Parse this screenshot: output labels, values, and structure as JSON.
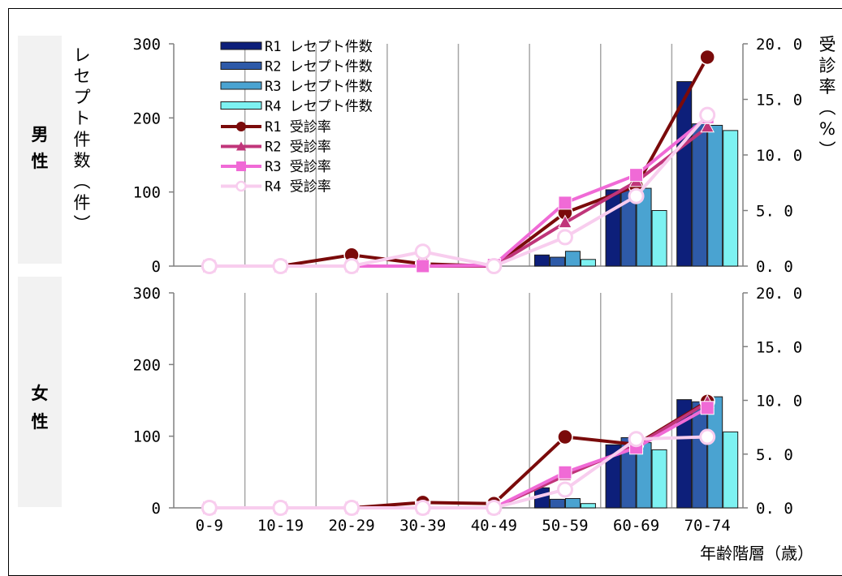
{
  "chart_data": [
    {
      "type": "bar",
      "panel_label": "男性",
      "categories": [
        "0-9",
        "10-19",
        "20-29",
        "30-39",
        "40-49",
        "50-59",
        "60-69",
        "70-74"
      ],
      "ylabel": "レセプト件数（件）",
      "y2label": "受診率（%）",
      "ylim": [
        0,
        300
      ],
      "y2lim": [
        0,
        20
      ],
      "yticks": [
        "0",
        "100",
        "200",
        "300"
      ],
      "y2ticks": [
        "0.0",
        "5.0",
        "10.0",
        "15.0",
        "20.0"
      ],
      "bar_series": [
        {
          "name": "R1 レセプト件数",
          "color": "#0d1f7a",
          "values": [
            0,
            0,
            0,
            0,
            0,
            15,
            103,
            249
          ]
        },
        {
          "name": "R2 レセプト件数",
          "color": "#2e5aa8",
          "values": [
            0,
            0,
            0,
            0,
            0,
            12,
            104,
            192
          ]
        },
        {
          "name": "R3 レセプト件数",
          "color": "#4aa3d1",
          "values": [
            0,
            0,
            0,
            0,
            0,
            20,
            105,
            190
          ]
        },
        {
          "name": "R4 レセプト件数",
          "color": "#7df2f2",
          "values": [
            0,
            0,
            0,
            0,
            0,
            9,
            75,
            183
          ]
        }
      ],
      "line_series": [
        {
          "name": "R1 受診率",
          "color": "#7a0a0a",
          "marker": "circle",
          "values": [
            0,
            0,
            1.0,
            0.2,
            0,
            4.8,
            7.2,
            18.8
          ]
        },
        {
          "name": "R2 受診率",
          "color": "#c0357a",
          "marker": "triangle",
          "values": [
            0,
            0,
            0,
            0,
            0,
            3.9,
            7.6,
            12.5
          ]
        },
        {
          "name": "R3 受診率",
          "color": "#f06ad6",
          "marker": "square",
          "values": [
            0,
            0,
            0,
            0,
            0.1,
            5.7,
            8.2,
            13.4
          ]
        },
        {
          "name": "R4 受診率",
          "color": "#f8cdee",
          "marker": "circle-open",
          "values": [
            0,
            0,
            0,
            1.3,
            0,
            2.6,
            6.3,
            13.6
          ]
        }
      ]
    },
    {
      "type": "bar",
      "panel_label": "女性",
      "categories": [
        "0-9",
        "10-19",
        "20-29",
        "30-39",
        "40-49",
        "50-59",
        "60-69",
        "70-74"
      ],
      "xlabel": "年齢階層（歳）",
      "ylim": [
        0,
        300
      ],
      "y2lim": [
        0,
        20
      ],
      "yticks": [
        "0",
        "100",
        "200",
        "300"
      ],
      "y2ticks": [
        "0.0",
        "5.0",
        "10.0",
        "15.0",
        "20.0"
      ],
      "bar_series": [
        {
          "name": "R1 レセプト件数",
          "color": "#0d1f7a",
          "values": [
            0,
            0,
            0,
            0,
            0,
            28,
            88,
            151
          ]
        },
        {
          "name": "R2 レセプト件数",
          "color": "#2e5aa8",
          "values": [
            0,
            0,
            0,
            0,
            0,
            12,
            98,
            148
          ]
        },
        {
          "name": "R3 レセプト件数",
          "color": "#4aa3d1",
          "values": [
            0,
            0,
            0,
            0,
            0,
            13,
            91,
            155
          ]
        },
        {
          "name": "R4 レセプト件数",
          "color": "#7df2f2",
          "values": [
            0,
            0,
            0,
            0,
            0,
            6,
            81,
            106
          ]
        }
      ],
      "line_series": [
        {
          "name": "R1 受診率",
          "color": "#7a0a0a",
          "marker": "circle",
          "values": [
            0,
            0,
            0,
            0.5,
            0.4,
            6.6,
            5.9,
            9.9
          ]
        },
        {
          "name": "R2 受診率",
          "color": "#c0357a",
          "marker": "triangle",
          "values": [
            0,
            0,
            0,
            0,
            0,
            3.0,
            5.8,
            9.8
          ]
        },
        {
          "name": "R3 受診率",
          "color": "#f06ad6",
          "marker": "square",
          "values": [
            0,
            0,
            0,
            0,
            0,
            3.3,
            5.6,
            9.3
          ]
        },
        {
          "name": "R4 受診率",
          "color": "#f8cdee",
          "marker": "circle-open",
          "values": [
            0,
            0,
            0,
            0,
            0,
            1.7,
            6.4,
            6.6
          ]
        }
      ]
    }
  ]
}
